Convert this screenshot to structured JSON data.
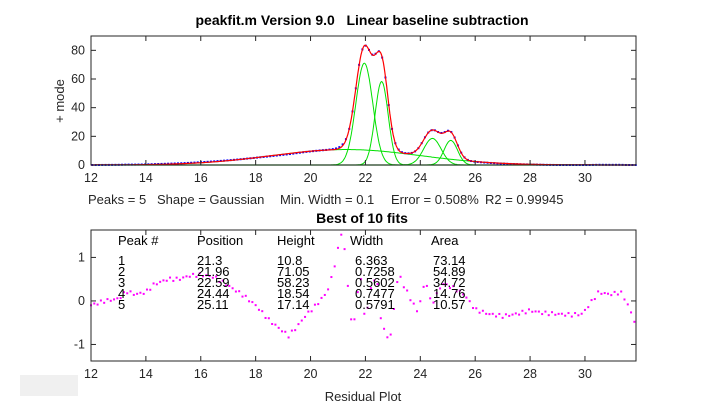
{
  "chart_data": [
    {
      "type": "line",
      "title": "peakfit.m Version 9.0   Linear baseline subtraction",
      "ylabel": "+ mode",
      "xlim": [
        12,
        31.86
      ],
      "ylim": [
        0,
        90
      ],
      "xticks": [
        "12",
        "14",
        "16",
        "18",
        "20",
        "22",
        "24",
        "26",
        "28",
        "30"
      ],
      "yticks": [
        "0",
        "20",
        "40",
        "60",
        "80"
      ],
      "series": [
        {
          "name": "data",
          "color": "#0000ff",
          "style": "points"
        },
        {
          "name": "fit",
          "color": "#ff0000",
          "style": "line"
        },
        {
          "name": "components",
          "color": "#00e000",
          "style": "line"
        }
      ],
      "stats": {
        "peaks": "Peaks = 5",
        "shape": "Shape = Gaussian",
        "min_width": "Min. Width = 0.1",
        "error": "Error = 0.508%",
        "r2": "R2 = 0.99945"
      },
      "subtitle": "Best of 10 fits"
    },
    {
      "type": "scatter",
      "xlabel": "Residual Plot",
      "xlim": [
        12,
        31.86
      ],
      "ylim": [
        -1.38,
        1.63
      ],
      "xticks": [
        "12",
        "14",
        "16",
        "18",
        "20",
        "22",
        "24",
        "26",
        "28",
        "30"
      ],
      "yticks": [
        "1",
        "0",
        "-1"
      ],
      "color": "#ff00ff",
      "residual_points": [
        [
          12,
          -0.1
        ],
        [
          12.5,
          0.0
        ],
        [
          13,
          0.05
        ],
        [
          13.3,
          0.22
        ],
        [
          13.6,
          0.15
        ],
        [
          14,
          0.2
        ],
        [
          14.3,
          0.38
        ],
        [
          14.8,
          0.5
        ],
        [
          15.2,
          0.5
        ],
        [
          15.6,
          0.58
        ],
        [
          16,
          0.6
        ],
        [
          16.5,
          0.55
        ],
        [
          17,
          0.35
        ],
        [
          17.5,
          0.15
        ],
        [
          18,
          -0.1
        ],
        [
          18.5,
          -0.45
        ],
        [
          19,
          -0.7
        ],
        [
          19.2,
          -0.8
        ],
        [
          19.5,
          -0.6
        ],
        [
          19.8,
          -0.35
        ],
        [
          20.2,
          -0.1
        ],
        [
          20.6,
          0.2
        ],
        [
          20.8,
          0.6
        ],
        [
          21,
          1.18
        ],
        [
          21.15,
          1.65
        ],
        [
          21.3,
          0.85
        ],
        [
          21.45,
          -0.4
        ],
        [
          21.6,
          -0.45
        ],
        [
          21.8,
          0.7
        ],
        [
          22,
          -0.5
        ],
        [
          22.2,
          0.3
        ],
        [
          22.4,
          0.6
        ],
        [
          22.6,
          -0.6
        ],
        [
          22.9,
          -0.9
        ],
        [
          23.2,
          0.65
        ],
        [
          23.4,
          0.35
        ],
        [
          23.6,
          0.1
        ],
        [
          23.9,
          -0.25
        ],
        [
          24.2,
          0.5
        ],
        [
          24.4,
          -0.1
        ],
        [
          24.8,
          0.4
        ],
        [
          25.2,
          0.3
        ],
        [
          25.6,
          0.15
        ],
        [
          26,
          -0.2
        ],
        [
          26.5,
          -0.3
        ],
        [
          27,
          -0.35
        ],
        [
          27.5,
          -0.3
        ],
        [
          28,
          -0.22
        ],
        [
          28.5,
          -0.28
        ],
        [
          29,
          -0.3
        ],
        [
          29.5,
          -0.32
        ],
        [
          29.9,
          -0.3
        ],
        [
          30.2,
          -0.05
        ],
        [
          30.5,
          0.2
        ],
        [
          30.9,
          0.15
        ],
        [
          31.3,
          0.2
        ],
        [
          31.5,
          0.0
        ],
        [
          31.7,
          -0.3
        ],
        [
          31.86,
          -0.55
        ]
      ]
    }
  ],
  "results_table": {
    "headers": [
      "Peak #",
      "Position",
      "Height",
      "Width",
      "Area"
    ],
    "rows": [
      [
        "1",
        "21.3",
        "10.8",
        "6.363",
        "73.14"
      ],
      [
        "2",
        "21.96",
        "71.05",
        "0.7258",
        "54.89"
      ],
      [
        "3",
        "22.59",
        "58.23",
        "0.5602",
        "34.72"
      ],
      [
        "4",
        "24.44",
        "18.54",
        "0.7477",
        "14.76"
      ],
      [
        "5",
        "25.11",
        "17.14",
        "0.5791",
        "10.57"
      ]
    ]
  }
}
